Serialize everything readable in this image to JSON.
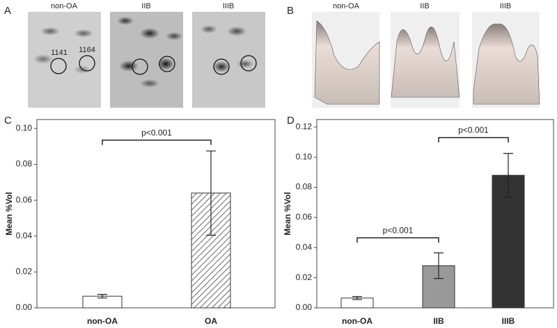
{
  "panel_a": {
    "letter": "A",
    "images": [
      "non-OA",
      "IIB",
      "IIIB"
    ],
    "spots": [
      "1141",
      "1164"
    ]
  },
  "panel_b": {
    "letter": "B",
    "images": [
      "non-OA",
      "IIB",
      "IIIB"
    ]
  },
  "chart_data": [
    {
      "type": "bar",
      "letter": "C",
      "ylabel": "Mean %Vol",
      "categories": [
        "non-OA",
        "OA"
      ],
      "values": [
        0.0065,
        0.064
      ],
      "errors": [
        0.001,
        0.0235
      ],
      "colors": [
        "#ffffff",
        "#ffffff"
      ],
      "hatch": [
        false,
        true
      ],
      "ylim": [
        0,
        0.105
      ],
      "yticks": [
        {
          "value": 0,
          "label": "0.00"
        },
        {
          "value": 0.02,
          "label": "0.02"
        },
        {
          "value": 0.04,
          "label": "0.04"
        },
        {
          "value": 0.06,
          "label": "0.06"
        },
        {
          "value": 0.08,
          "label": "0.08"
        },
        {
          "value": 0.1,
          "label": "0.10"
        }
      ],
      "annotations": [
        {
          "text": "p<0.001",
          "span": [
            0,
            1
          ],
          "y": 0.0935
        }
      ]
    },
    {
      "type": "bar",
      "letter": "D",
      "ylabel": "Mean %Vol",
      "categories": [
        "non-OA",
        "IIB",
        "IIIB"
      ],
      "values": [
        0.0065,
        0.028,
        0.088
      ],
      "errors": [
        0.001,
        0.0085,
        0.0145
      ],
      "colors": [
        "#ffffff",
        "#999999",
        "#333333"
      ],
      "hatch": [
        false,
        false,
        false
      ],
      "ylim": [
        0,
        0.125
      ],
      "yticks": [
        {
          "value": 0,
          "label": "0.00"
        },
        {
          "value": 0.02,
          "label": "0.02"
        },
        {
          "value": 0.04,
          "label": "0.04"
        },
        {
          "value": 0.06,
          "label": "0.06"
        },
        {
          "value": 0.08,
          "label": "0.08"
        },
        {
          "value": 0.1,
          "label": "0.10"
        },
        {
          "value": 0.12,
          "label": "0.12"
        }
      ],
      "annotations": [
        {
          "text": "p<0.001",
          "span": [
            0,
            1
          ],
          "y": 0.0465
        },
        {
          "text": "p<0.001",
          "span": [
            1,
            2
          ],
          "y": 0.113
        }
      ]
    }
  ]
}
